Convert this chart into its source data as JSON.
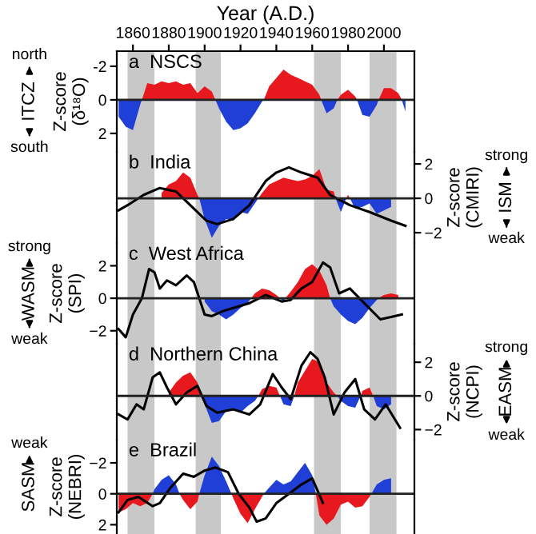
{
  "chart_data": [
    {
      "type": "area",
      "title": "a  NSCS",
      "xlabel": "Year (A.D.)",
      "ylabel": "Z-score\n(δ¹⁸O)",
      "xlim": [
        1851,
        2017
      ],
      "xticks": [
        1860,
        1880,
        1900,
        1920,
        1940,
        1960,
        1980,
        2000
      ],
      "ylim": [
        3.1,
        -2.9
      ],
      "yticks": [
        -2,
        0,
        2
      ],
      "annotations": [
        "north",
        "ITCZ",
        "south"
      ],
      "ref_lines": [
        {
          "axis": "y",
          "value": 0,
          "color": "#222222"
        }
      ],
      "bands": [
        {
          "axis": "x",
          "from": 1857,
          "to": 1872,
          "color": "#c8c8c8"
        },
        {
          "axis": "x",
          "from": 1895,
          "to": 1909,
          "color": "#c8c8c8"
        },
        {
          "axis": "x",
          "from": 1961,
          "to": 1976,
          "color": "#c8c8c8"
        },
        {
          "axis": "x",
          "from": 1992,
          "to": 2007,
          "color": "#c8c8c8"
        }
      ],
      "series": [
        {
          "type": "area",
          "color": "#e8191e",
          "x": [
            1865,
            1868,
            1872,
            1876,
            1880,
            1884,
            1888,
            1892,
            1896,
            1900,
            1904,
            1906,
            1933,
            1936,
            1940,
            1944,
            1948,
            1952,
            1956,
            1960,
            1964,
            1965,
            1974,
            1976,
            1980,
            1984,
            1985,
            1997,
            2000,
            2004,
            2008,
            2010
          ],
          "values": [
            0,
            -1.0,
            -0.9,
            -1.1,
            -1.0,
            -1.1,
            -0.9,
            -1.0,
            -0.4,
            -0.8,
            -0.5,
            0,
            0,
            -0.8,
            -1.3,
            -1.8,
            -1.5,
            -1.3,
            -1.1,
            -0.9,
            -0.3,
            0,
            0,
            -0.3,
            -0.6,
            -0.2,
            0,
            0,
            -0.7,
            -0.7,
            -0.4,
            0
          ]
        },
        {
          "type": "area",
          "color": "#1f3fd6",
          "x": [
            1852,
            1856,
            1860,
            1864,
            1865,
            1906,
            1908,
            1912,
            1916,
            1920,
            1924,
            1928,
            1932,
            1933,
            1965,
            1968,
            1972,
            1974,
            1985,
            1988,
            1992,
            1996,
            1997,
            2010,
            2012
          ],
          "values": [
            1.0,
            1.6,
            1.8,
            0.3,
            0,
            0,
            0.5,
            1.3,
            1.8,
            1.7,
            1.4,
            0.8,
            0.1,
            0,
            0,
            0.8,
            0.5,
            0,
            0,
            0.9,
            1.0,
            0.3,
            0,
            0,
            0.7
          ]
        }
      ]
    },
    {
      "type": "area",
      "title": "b  India",
      "y2label": "Z-score\n(CMIRI)",
      "xlim": [
        1851,
        2017
      ],
      "y2lim": [
        -2.6,
        2.7
      ],
      "y2ticks": [
        {
          "value": -2,
          "label": "−2"
        },
        0,
        2
      ],
      "tick_labels": "y",
      "annotations": [
        "strong",
        "ISM",
        "weak"
      ],
      "ref_lines": [
        {
          "axis": "y2",
          "value": 0,
          "color": "#222222"
        }
      ],
      "bands": [
        {
          "axis": "x",
          "from": 1857,
          "to": 1872,
          "color": "#c8c8c8"
        },
        {
          "axis": "x",
          "from": 1895,
          "to": 1909,
          "color": "#c8c8c8"
        },
        {
          "axis": "x",
          "from": 1961,
          "to": 1976,
          "color": "#c8c8c8"
        },
        {
          "axis": "x",
          "from": 1992,
          "to": 2007,
          "color": "#c8c8c8"
        }
      ],
      "series": [
        {
          "type": "area",
          "axis": "y2",
          "color": "#e8191e",
          "x": [
            1876,
            1880,
            1884,
            1888,
            1892,
            1896,
            1897,
            1930,
            1932,
            1936,
            1940,
            1944,
            1948,
            1952,
            1956,
            1960,
            1964,
            1968,
            1972,
            1973,
            1979,
            1980,
            1981
          ],
          "values": [
            0.3,
            0.8,
            1.0,
            1.5,
            1.2,
            0.2,
            0,
            0,
            0.3,
            0.8,
            1.0,
            1.2,
            1.1,
            1.0,
            1.1,
            1.3,
            1.7,
            0.5,
            0.4,
            0,
            0,
            0.2,
            0
          ]
        },
        {
          "type": "area",
          "axis": "y2",
          "color": "#1f3fd6",
          "x": [
            1897,
            1900,
            1904,
            1908,
            1912,
            1916,
            1920,
            1924,
            1928,
            1930,
            1973,
            1976,
            1979,
            1981,
            1984,
            1988,
            1992,
            1996,
            2000,
            2004
          ],
          "values": [
            0,
            -1.2,
            -2.3,
            -1.6,
            -1.2,
            -1.3,
            -0.8,
            -0.9,
            -0.3,
            0,
            0,
            -0.8,
            0,
            0,
            -0.6,
            -0.5,
            -0.3,
            -0.9,
            -0.7,
            -0.5
          ]
        },
        {
          "type": "line",
          "axis": "y2",
          "color": "#000000",
          "x": [
            1852,
            1857,
            1866,
            1875,
            1884,
            1893,
            1901,
            1907,
            1916,
            1925,
            1934,
            1940,
            1947,
            1954,
            1963,
            1970,
            1981,
            1992,
            2004,
            2012
          ],
          "values": [
            -0.7,
            -0.4,
            0.2,
            0.6,
            0.4,
            -0.5,
            -1.3,
            -1.5,
            -1.2,
            -0.4,
            1.0,
            1.5,
            1.8,
            1.5,
            1.2,
            0.2,
            -0.4,
            -0.8,
            -1.3,
            -1.6
          ]
        }
      ]
    },
    {
      "type": "area",
      "title": "c  West Africa",
      "ylabel": "Z-score\n(SPI)",
      "xlim": [
        1851,
        2017
      ],
      "ylim": [
        -2.8,
        3.4
      ],
      "yticks": [
        {
          "value": -2,
          "label": "−2"
        },
        0,
        2
      ],
      "tick_labels": "y",
      "annotations": [
        "strong",
        "WASM",
        "weak"
      ],
      "ref_lines": [
        {
          "axis": "y",
          "value": 0,
          "color": "#222222"
        }
      ],
      "bands": [
        {
          "axis": "x",
          "from": 1857,
          "to": 1872,
          "color": "#c8c8c8"
        },
        {
          "axis": "x",
          "from": 1895,
          "to": 1909,
          "color": "#c8c8c8"
        },
        {
          "axis": "x",
          "from": 1961,
          "to": 1976,
          "color": "#c8c8c8"
        },
        {
          "axis": "x",
          "from": 1992,
          "to": 2007,
          "color": "#c8c8c8"
        }
      ],
      "series": [
        {
          "type": "area",
          "color": "#e8191e",
          "x": [
            1926,
            1928,
            1932,
            1936,
            1940,
            1942,
            1945,
            1948,
            1952,
            1956,
            1960,
            1964,
            1968,
            1970,
            1997,
            2000,
            2004,
            2008
          ],
          "values": [
            0,
            0.3,
            0.6,
            0.5,
            0.2,
            0,
            0,
            0.4,
            1.0,
            1.8,
            2.1,
            1.7,
            0.8,
            0,
            0,
            0.2,
            0.3,
            0.2
          ]
        },
        {
          "type": "area",
          "color": "#1f3fd6",
          "x": [
            1900,
            1904,
            1908,
            1912,
            1916,
            1920,
            1924,
            1926,
            1942,
            1944,
            1945,
            1970,
            1972,
            1976,
            1980,
            1984,
            1988,
            1992,
            1996,
            1997
          ],
          "values": [
            -0.2,
            -0.8,
            -1.0,
            -1.3,
            -1.0,
            -0.6,
            -0.3,
            0,
            0,
            -0.2,
            0,
            0,
            -0.5,
            -1.0,
            -1.4,
            -1.6,
            -1.2,
            -0.6,
            -0.1,
            0
          ]
        },
        {
          "type": "line",
          "color": "#000000",
          "x": [
            1852,
            1856,
            1860,
            1865,
            1869,
            1872,
            1875,
            1879,
            1884,
            1890,
            1894,
            1900,
            1904,
            1910,
            1916,
            1925,
            1934,
            1943,
            1948,
            1954,
            1960,
            1966,
            1970,
            1975,
            1981,
            1989,
            1998,
            2006,
            2010
          ],
          "values": [
            -1.9,
            -2.4,
            -1.0,
            0,
            1.8,
            1.6,
            0.6,
            1.1,
            0.8,
            1.4,
            1.0,
            -1.0,
            -1.1,
            -0.8,
            -0.6,
            -0.3,
            0.2,
            -0.2,
            -0.1,
            0.6,
            1.0,
            2.2,
            1.9,
            0.3,
            0.6,
            -0.3,
            -1.3,
            -1.1,
            -1.0
          ]
        }
      ]
    },
    {
      "type": "area",
      "title": "d  Northern China",
      "y2label": "Z-score\n(NCPI)",
      "xlim": [
        1851,
        2017
      ],
      "y2lim": [
        -2.6,
        3.1
      ],
      "y2ticks": [
        {
          "value": -2,
          "label": "−2"
        },
        0,
        2
      ],
      "tick_labels": "y",
      "annotations": [
        "strong",
        "EASM",
        "weak"
      ],
      "ref_lines": [
        {
          "axis": "y2",
          "value": 0,
          "color": "#222222"
        }
      ],
      "bands": [
        {
          "axis": "x",
          "from": 1857,
          "to": 1872,
          "color": "#c8c8c8"
        },
        {
          "axis": "x",
          "from": 1895,
          "to": 1909,
          "color": "#c8c8c8"
        },
        {
          "axis": "x",
          "from": 1961,
          "to": 1976,
          "color": "#c8c8c8"
        },
        {
          "axis": "x",
          "from": 1992,
          "to": 2007,
          "color": "#c8c8c8"
        }
      ],
      "series": [
        {
          "type": "area",
          "axis": "y2",
          "color": "#e8191e",
          "x": [
            1880,
            1884,
            1888,
            1892,
            1896,
            1898,
            1930,
            1932,
            1936,
            1940,
            1942,
            1950,
            1952,
            1956,
            1960,
            1964,
            1968,
            1972,
            1974,
            1987,
            1988,
            1992,
            1994
          ],
          "values": [
            0.2,
            0.8,
            1.2,
            1.4,
            0.8,
            0,
            0,
            0.4,
            0.6,
            0.5,
            0,
            0,
            0.8,
            1.5,
            2.2,
            2.0,
            0.8,
            0.2,
            0,
            0,
            0.3,
            0.5,
            0
          ]
        },
        {
          "type": "area",
          "axis": "y2",
          "color": "#1f3fd6",
          "x": [
            1898,
            1900,
            1904,
            1908,
            1912,
            1916,
            1920,
            1924,
            1928,
            1930,
            1942,
            1944,
            1948,
            1950,
            1974,
            1976,
            1980,
            1984,
            1987,
            1994,
            1996,
            2000,
            2004
          ],
          "values": [
            0,
            -0.5,
            -1.6,
            -1.5,
            -0.9,
            -0.8,
            -1.0,
            -0.6,
            -0.3,
            0,
            0,
            -0.5,
            -0.6,
            0,
            0,
            -0.3,
            -0.6,
            -0.7,
            0,
            0,
            -0.6,
            -0.8,
            -0.5
          ]
        },
        {
          "type": "line",
          "axis": "y2",
          "color": "#000000",
          "x": [
            1852,
            1857,
            1862,
            1866,
            1871,
            1875,
            1879,
            1884,
            1890,
            1896,
            1901,
            1907,
            1916,
            1925,
            1931,
            1938,
            1943,
            1948,
            1954,
            1959,
            1963,
            1967,
            1972,
            1978,
            1984,
            1989,
            1995,
            2001,
            2009
          ],
          "values": [
            -1.1,
            -1.4,
            -0.5,
            -0.8,
            1.1,
            1.4,
            0.5,
            -0.5,
            0.2,
            0.6,
            -0.6,
            -1.0,
            -0.8,
            -1.1,
            -0.5,
            1.3,
            0.5,
            -0.2,
            1.8,
            2.6,
            2.2,
            1.1,
            -1.1,
            0.2,
            1.0,
            -0.8,
            -1.4,
            -0.5,
            -1.9
          ]
        }
      ]
    },
    {
      "type": "area",
      "title": "e  Brazil",
      "ylabel": "Z-score\n(NEBRI)",
      "xlim": [
        1851,
        2017
      ],
      "ylim": [
        2.6,
        -3.5
      ],
      "yticks": [
        {
          "value": -2,
          "label": "−2"
        },
        0,
        2
      ],
      "tick_labels": "y",
      "annotations": [
        "weak",
        "SASM"
      ],
      "ref_lines": [
        {
          "axis": "y",
          "value": 0,
          "color": "#222222"
        }
      ],
      "bands": [
        {
          "axis": "x",
          "from": 1857,
          "to": 1872,
          "color": "#c8c8c8"
        },
        {
          "axis": "x",
          "from": 1895,
          "to": 1909,
          "color": "#c8c8c8"
        },
        {
          "axis": "x",
          "from": 1961,
          "to": 1976,
          "color": "#c8c8c8"
        },
        {
          "axis": "x",
          "from": 1992,
          "to": 2007,
          "color": "#c8c8c8"
        }
      ],
      "series": [
        {
          "type": "area",
          "color": "#e8191e",
          "x": [
            1852,
            1856,
            1860,
            1864,
            1868,
            1871,
            1886,
            1888,
            1892,
            1896,
            1897,
            1915,
            1916,
            1920,
            1924,
            1928,
            1932,
            1933,
            1962,
            1964,
            1968,
            1972,
            1976,
            1980,
            1984,
            1988,
            1992,
            1993
          ],
          "values": [
            1.2,
            1.0,
            0.6,
            0.8,
            0.6,
            0,
            0,
            0.4,
            1.0,
            0.5,
            0,
            0,
            0.3,
            1.3,
            1.9,
            1.0,
            0.2,
            0,
            0,
            1.4,
            2.0,
            1.6,
            0.7,
            0.5,
            0.9,
            0.8,
            0.2,
            0
          ]
        },
        {
          "type": "area",
          "color": "#1f3fd6",
          "x": [
            1871,
            1872,
            1876,
            1880,
            1884,
            1886,
            1897,
            1900,
            1904,
            1908,
            1912,
            1915,
            1933,
            1936,
            1940,
            1944,
            1948,
            1952,
            1956,
            1960,
            1962,
            1993,
            1996,
            2000,
            2004
          ],
          "values": [
            0,
            -0.3,
            -0.9,
            -1.2,
            -0.6,
            0,
            0,
            -1.2,
            -2.4,
            -1.8,
            -0.8,
            0,
            0,
            -0.4,
            -0.9,
            -0.6,
            -0.8,
            -1.4,
            -2.0,
            -1.2,
            0,
            0,
            -0.6,
            -0.9,
            -1.0
          ]
        },
        {
          "type": "line",
          "color": "#000000",
          "x": [
            1852,
            1857,
            1863,
            1871,
            1875,
            1881,
            1888,
            1894,
            1900,
            1906,
            1913,
            1919,
            1925,
            1929,
            1934,
            1940,
            1947,
            1954,
            1960,
            1966
          ],
          "values": [
            1.2,
            0.4,
            0.2,
            0.8,
            0.6,
            -0.4,
            -1.3,
            -1.1,
            -1.5,
            -1.7,
            -1.4,
            0,
            0.9,
            1.8,
            1.6,
            0.6,
            0,
            -0.6,
            -1.0,
            0.6
          ]
        }
      ]
    }
  ]
}
